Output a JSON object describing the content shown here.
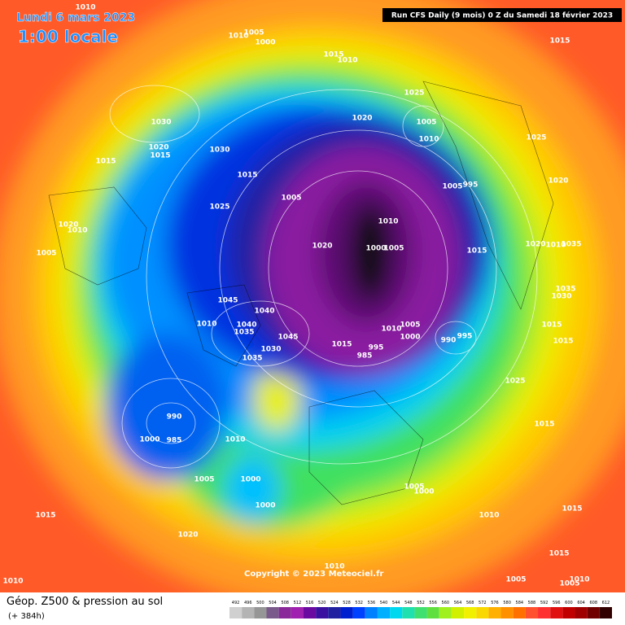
{
  "header": {
    "date": "Lundi 6 mars 2023",
    "time": "1:00 locale",
    "run": "Run CFS Daily (9 mois) 0 Z du Samedi 18 février 2023"
  },
  "footer": {
    "title": "Géop. Z500 & pression au sol",
    "subtitle": "(+ 384h)",
    "copyright": "Copyright © 2023 Meteociel.fr"
  },
  "pressure_labels": [
    1010,
    1010,
    1005,
    1000,
    1015,
    1010,
    1015,
    1025,
    1020,
    1005,
    1010,
    1030,
    1020,
    1015,
    1030,
    1015,
    1025,
    1015,
    1005,
    1005,
    995,
    1020,
    1025,
    1010,
    1020,
    1010,
    1020,
    1000,
    1005,
    1020,
    1010,
    1035,
    1015,
    1005,
    1035,
    1030,
    1045,
    1040,
    1010,
    1040,
    1035,
    1045,
    1005,
    1010,
    1000,
    990,
    995,
    1015,
    1015,
    1015,
    995,
    985,
    1030,
    1035,
    1025,
    990,
    1000,
    985,
    1010,
    1015,
    1005,
    1000,
    1005,
    1000,
    1000,
    1010,
    1015,
    1015,
    1020,
    1015,
    1010,
    1005,
    1010,
    1005,
    1010
  ],
  "scale": {
    "values": [
      492,
      496,
      500,
      504,
      508,
      512,
      516,
      520,
      524,
      528,
      532,
      536,
      540,
      544,
      548,
      552,
      556,
      560,
      564,
      568,
      572,
      576,
      580,
      584,
      588,
      592,
      596,
      600,
      604,
      608,
      612
    ],
    "colors": [
      "#d0d0d0",
      "#b4b4b4",
      "#969696",
      "#7a5a8a",
      "#8a2a9a",
      "#a020b0",
      "#6a0aa0",
      "#3a10a0",
      "#2020a0",
      "#0020d0",
      "#0040ff",
      "#0080ff",
      "#00b0ff",
      "#00d8f0",
      "#20e0b0",
      "#40e070",
      "#60e040",
      "#a0f020",
      "#d0f000",
      "#f0f000",
      "#f8d800",
      "#ffb000",
      "#ff9000",
      "#ff7000",
      "#ff5030",
      "#ff3030",
      "#e01010",
      "#c00000",
      "#a00000",
      "#700000",
      "#300000"
    ]
  }
}
